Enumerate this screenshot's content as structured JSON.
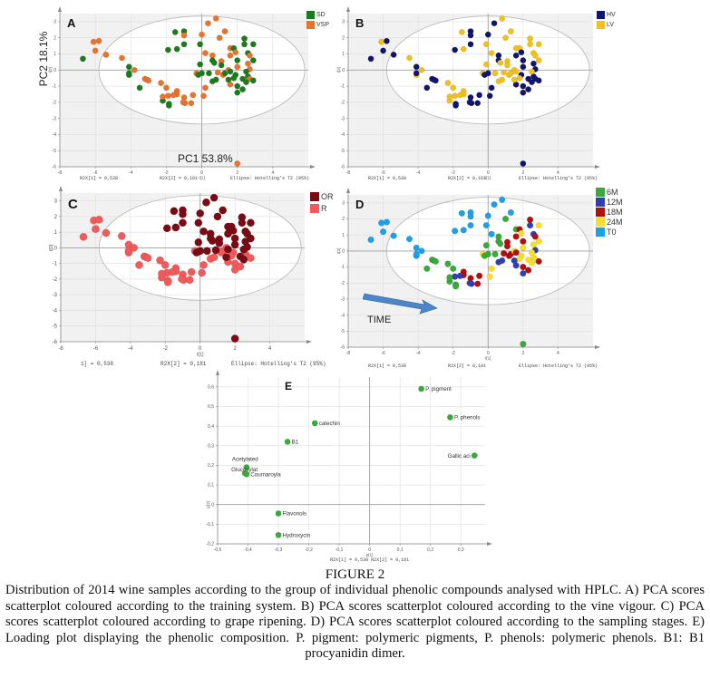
{
  "figure": {
    "title": "FIGURE 2",
    "caption": "Distribution of 2014 wine samples according to the group of individual phenolic compounds analysed with HPLC. A) PCA scores scatterplot coloured according to the training system. B) PCA scores scatterplot coloured according to the vine vigour. C) PCA scores scatterplot coloured according to grape ripening. D) PCA scores scatterplot coloured according to the sampling stages. E) Loading plot displaying the phenolic composition. P. pigment: polymeric pigments, P. phenols: polymeric phenols. B1: B1 procyanidin dimer."
  },
  "annotations": {
    "pc2_label": "PC2 18.1%",
    "pc1_label": "PC1 53.8%",
    "time_label": "TIME"
  },
  "chart_data": [
    {
      "id": "A",
      "type": "scatter",
      "title": "A",
      "xlabel": "t[1]",
      "ylabel": "t[2]",
      "xlim": [
        -8,
        6
      ],
      "ylim": [
        -6,
        3.5
      ],
      "xticks": [
        -8,
        -6,
        -4,
        -2,
        0,
        2,
        4
      ],
      "yticks": [
        3,
        2,
        1,
        0,
        -1,
        -2,
        -3,
        -4,
        -5,
        -6
      ],
      "grid": true,
      "legend_position": "top-right",
      "footer": [
        "R2X[1] = 0,538",
        "R2X[2] = 0,181",
        "Ellipse: Hotelling's T2 (95%)"
      ],
      "ellipse": {
        "rx": 5.8,
        "ry": 3.35
      },
      "groups": [
        {
          "name": "SD",
          "color": "#1e7a1e"
        },
        {
          "name": "VSP",
          "color": "#e8732a"
        }
      ],
      "group_key": "a"
    },
    {
      "id": "B",
      "type": "scatter",
      "title": "B",
      "xlabel": "t[1]",
      "ylabel": "t[2]",
      "xlim": [
        -8,
        6
      ],
      "ylim": [
        -6,
        3.5
      ],
      "xticks": [
        -8,
        -6,
        -4,
        -2,
        0,
        2,
        4
      ],
      "yticks": [
        3,
        2,
        1,
        0,
        -1,
        -2,
        -3,
        -4,
        -5,
        -6
      ],
      "grid": true,
      "legend_position": "top-right",
      "footer": [
        "R2X[1] = 0,538",
        "R2X[2] = 0,181",
        "Ellipse: Hotelling's T2 (95%)"
      ],
      "ellipse": {
        "rx": 5.8,
        "ry": 3.35
      },
      "groups": [
        {
          "name": "HV",
          "color": "#12166b"
        },
        {
          "name": "LV",
          "color": "#f0c020"
        }
      ],
      "group_key": "b"
    },
    {
      "id": "C",
      "type": "scatter",
      "title": "C",
      "xlabel": "t[1]",
      "ylabel": "t[2]",
      "xlim": [
        -8,
        6
      ],
      "ylim": [
        -6,
        3.5
      ],
      "xticks": [
        -8,
        -6,
        -4,
        -2,
        0,
        2,
        4
      ],
      "yticks": [
        3,
        2,
        1,
        0,
        -1,
        -2,
        -3,
        -4,
        -5,
        -6
      ],
      "grid": true,
      "legend_position": "top-right",
      "footer": [
        "1] = 0,538",
        "R2X[2] = 0,181",
        "Ellipse: Hotelling's T2 (95%)"
      ],
      "ellipse": {
        "rx": 5.8,
        "ry": 3.35
      },
      "groups": [
        {
          "name": "OR",
          "color": "#7a0b14"
        },
        {
          "name": "R",
          "color": "#f05a5a"
        }
      ],
      "group_key": "c"
    },
    {
      "id": "D",
      "type": "scatter",
      "title": "D",
      "xlabel": "t[1]",
      "ylabel": "t[2]",
      "xlim": [
        -8,
        6
      ],
      "ylim": [
        -6,
        3.5
      ],
      "xticks": [
        -8,
        -6,
        -4,
        -2,
        0,
        2,
        4
      ],
      "yticks": [
        3,
        2,
        1,
        0,
        -1,
        -2,
        -3,
        -4,
        -5,
        -6
      ],
      "grid": true,
      "legend_position": "top-right",
      "footer": [
        "R2X[1] = 0,538",
        "R2X[2] = 0,181",
        "Ellipse: Hotelling's T2 (95%)"
      ],
      "ellipse": {
        "rx": 5.8,
        "ry": 3.35
      },
      "groups": [
        {
          "name": "6M",
          "color": "#3aa83a"
        },
        {
          "name": "12M",
          "color": "#3040b0"
        },
        {
          "name": "18M",
          "color": "#b01010"
        },
        {
          "name": "24M",
          "color": "#f5e030"
        },
        {
          "name": "T0",
          "color": "#1ea0e6"
        }
      ],
      "group_key": "d"
    },
    {
      "id": "E",
      "type": "scatter",
      "title": "E",
      "xlabel": "p[1]",
      "ylabel": "p[2]",
      "xlim": [
        -0.5,
        0.38
      ],
      "ylim": [
        -0.2,
        0.65
      ],
      "xticks": [
        -0.5,
        -0.4,
        -0.3,
        -0.2,
        -0.1,
        0,
        0.1,
        0.2,
        0.3
      ],
      "yticks": [
        0.6,
        0.5,
        0.4,
        0.3,
        0.2,
        0.1,
        0,
        -0.1,
        -0.2
      ],
      "grid": true,
      "footer": [
        "R2X[1] = 0,538 R2X[2] = 0,181"
      ],
      "color": "#3aa83a",
      "points": [
        {
          "label": "P. pigment",
          "x": 0.17,
          "y": 0.59,
          "anchor": "right"
        },
        {
          "label": "P. phenols",
          "x": 0.265,
          "y": 0.445,
          "anchor": "right"
        },
        {
          "label": "Gallic aci",
          "x": 0.345,
          "y": 0.25,
          "anchor": "left"
        },
        {
          "label": "catechin",
          "x": -0.18,
          "y": 0.415,
          "anchor": "right"
        },
        {
          "label": "B1",
          "x": -0.27,
          "y": 0.32,
          "anchor": "right"
        },
        {
          "label": "Acetylated",
          "x": -0.405,
          "y": 0.19,
          "anchor": "above"
        },
        {
          "label": "Glucosylat",
          "x": -0.41,
          "y": 0.16,
          "anchor": "above2"
        },
        {
          "label": "Coumaroyla",
          "x": -0.405,
          "y": 0.155,
          "anchor": "right"
        },
        {
          "label": "Flavonols",
          "x": -0.3,
          "y": -0.045,
          "anchor": "right"
        },
        {
          "label": "Hydroxycin",
          "x": -0.3,
          "y": -0.155,
          "anchor": "right"
        }
      ]
    }
  ],
  "samples": [
    {
      "x": -6.7,
      "y": 0.7,
      "a": "SD",
      "b": "HV",
      "c": "R",
      "d": "T0"
    },
    {
      "x": -6.1,
      "y": 1.75,
      "a": "VSP",
      "b": "LV",
      "c": "R",
      "d": "T0"
    },
    {
      "x": -6.0,
      "y": 1.2,
      "a": "VSP",
      "b": "HV",
      "c": "R",
      "d": "T0"
    },
    {
      "x": -5.8,
      "y": 1.8,
      "a": "VSP",
      "b": "HV",
      "c": "R",
      "d": "T0"
    },
    {
      "x": -5.4,
      "y": 0.95,
      "a": "VSP",
      "b": "HV",
      "c": "R",
      "d": "T0"
    },
    {
      "x": -4.5,
      "y": 0.75,
      "a": "VSP",
      "b": "LV",
      "c": "R",
      "d": "T0"
    },
    {
      "x": -4.1,
      "y": 0.2,
      "a": "SD",
      "b": "HV",
      "c": "R",
      "d": "T0"
    },
    {
      "x": -4.1,
      "y": -0.3,
      "a": "SD",
      "b": "LV",
      "c": "R",
      "d": "T0"
    },
    {
      "x": -4.1,
      "y": -0.2,
      "a": "SD",
      "b": "HV",
      "c": "R",
      "d": "T0"
    },
    {
      "x": -3.8,
      "y": 0.0,
      "a": "VSP",
      "b": "LV",
      "c": "R",
      "d": "T0"
    },
    {
      "x": -3.2,
      "y": -0.55,
      "a": "VSP",
      "b": "HV",
      "c": "R",
      "d": "6M"
    },
    {
      "x": -3.1,
      "y": -0.6,
      "a": "VSP",
      "b": "HV",
      "c": "R",
      "d": "6M"
    },
    {
      "x": -3.0,
      "y": -0.65,
      "a": "VSP",
      "b": "HV",
      "c": "R",
      "d": "6M"
    },
    {
      "x": -3.5,
      "y": -1.1,
      "a": "SD",
      "b": "HV",
      "c": "R",
      "d": "6M"
    },
    {
      "x": -2.3,
      "y": -0.8,
      "a": "VSP",
      "b": "LV",
      "c": "R",
      "d": "6M"
    },
    {
      "x": -2.0,
      "y": -1.1,
      "a": "VSP",
      "b": "LV",
      "c": "R",
      "d": "6M"
    },
    {
      "x": -1.9,
      "y": -1.6,
      "a": "VSP",
      "b": "LV",
      "c": "R",
      "d": "12M"
    },
    {
      "x": -2.2,
      "y": -1.9,
      "a": "SD",
      "b": "LV",
      "c": "R",
      "d": "6M"
    },
    {
      "x": -2.2,
      "y": -1.65,
      "a": "VSP",
      "b": "LV",
      "c": "R",
      "d": "6M"
    },
    {
      "x": -1.85,
      "y": -2.1,
      "a": "SD",
      "b": "HV",
      "c": "R",
      "d": "6M"
    },
    {
      "x": -1.85,
      "y": -2.2,
      "a": "SD",
      "b": "HV",
      "c": "R",
      "d": "6M"
    },
    {
      "x": -1.4,
      "y": -1.3,
      "a": "VSP",
      "b": "LV",
      "c": "R",
      "d": "18M"
    },
    {
      "x": -1.4,
      "y": -1.5,
      "a": "VSP",
      "b": "LV",
      "c": "R",
      "d": "18M"
    },
    {
      "x": -1.6,
      "y": -1.55,
      "a": "VSP",
      "b": "LV",
      "c": "R",
      "d": "12M"
    },
    {
      "x": -1.0,
      "y": -1.7,
      "a": "VSP",
      "b": "HV",
      "c": "R",
      "d": "18M"
    },
    {
      "x": -0.95,
      "y": -2.05,
      "a": "VSP",
      "b": "HV",
      "c": "R",
      "d": "12M"
    },
    {
      "x": -1.05,
      "y": -2.0,
      "a": "VSP",
      "b": "HV",
      "c": "R",
      "d": "12M"
    },
    {
      "x": -0.6,
      "y": -2.05,
      "a": "VSP",
      "b": "HV",
      "c": "R",
      "d": "18M"
    },
    {
      "x": -0.5,
      "y": -1.55,
      "a": "VSP",
      "b": "HV",
      "c": "R",
      "d": "18M"
    },
    {
      "x": -0.3,
      "y": -0.2,
      "a": "VSP",
      "b": "LV",
      "c": "R",
      "d": "24M"
    },
    {
      "x": 0.1,
      "y": -1.6,
      "a": "VSP",
      "b": "HV",
      "c": "R",
      "d": "24M"
    },
    {
      "x": 0.2,
      "y": -1.1,
      "a": "VSP",
      "b": "HV",
      "c": "R",
      "d": "24M"
    },
    {
      "x": 0.6,
      "y": -0.7,
      "a": "SD",
      "b": "LV",
      "c": "R",
      "d": "12M"
    },
    {
      "x": 0.8,
      "y": -0.6,
      "a": "SD",
      "b": "LV",
      "c": "R",
      "d": "12M"
    },
    {
      "x": 1.2,
      "y": -0.3,
      "a": "VSP",
      "b": "LV",
      "c": "R",
      "d": "18M"
    },
    {
      "x": 1.3,
      "y": -0.2,
      "a": "SD",
      "b": "LV",
      "c": "R",
      "d": "18M"
    },
    {
      "x": 1.6,
      "y": -0.9,
      "a": "VSP",
      "b": "HV",
      "c": "R",
      "d": "12M"
    },
    {
      "x": 1.9,
      "y": -0.3,
      "a": "SD",
      "b": "HV",
      "c": "R",
      "d": "24M"
    },
    {
      "x": 2.0,
      "y": -1.4,
      "a": "SD",
      "b": "HV",
      "c": "R",
      "d": "12M"
    },
    {
      "x": 2.0,
      "y": -1.0,
      "a": "SD",
      "b": "HV",
      "c": "R",
      "d": "18M"
    },
    {
      "x": 2.3,
      "y": -1.2,
      "a": "SD",
      "b": "HV",
      "c": "R",
      "d": "18M"
    },
    {
      "x": 2.6,
      "y": -0.4,
      "a": "SD",
      "b": "HV",
      "c": "R",
      "d": "24M"
    },
    {
      "x": 2.7,
      "y": -0.55,
      "a": "VSP",
      "b": "HV",
      "c": "R",
      "d": "24M"
    },
    {
      "x": 2.9,
      "y": -0.65,
      "a": "SD",
      "b": "HV",
      "c": "R",
      "d": "18M"
    },
    {
      "x": 1.5,
      "y": 0.0,
      "a": "VSP",
      "b": "LV",
      "c": "R",
      "d": "24M"
    },
    {
      "x": 1.8,
      "y": -0.5,
      "a": "SD",
      "b": "LV",
      "c": "R",
      "d": "24M"
    },
    {
      "x": -1.9,
      "y": 1.25,
      "a": "SD",
      "b": "HV",
      "c": "OR",
      "d": "T0"
    },
    {
      "x": -1.5,
      "y": 2.35,
      "a": "SD",
      "b": "LV",
      "c": "OR",
      "d": "T0"
    },
    {
      "x": -1.4,
      "y": 1.3,
      "a": "SD",
      "b": "LV",
      "c": "OR",
      "d": "T0"
    },
    {
      "x": -1.0,
      "y": 2.4,
      "a": "SD",
      "b": "HV",
      "c": "OR",
      "d": "T0"
    },
    {
      "x": -1.0,
      "y": 2.15,
      "a": "VSP",
      "b": "HV",
      "c": "OR",
      "d": "T0"
    },
    {
      "x": -1.0,
      "y": 1.6,
      "a": "SD",
      "b": "HV",
      "c": "OR",
      "d": "T0"
    },
    {
      "x": -0.1,
      "y": 1.6,
      "a": "SD",
      "b": "LV",
      "c": "OR",
      "d": "T0"
    },
    {
      "x": 0.0,
      "y": 2.2,
      "a": "VSP",
      "b": "HV",
      "c": "OR",
      "d": "T0"
    },
    {
      "x": 0.35,
      "y": 2.9,
      "a": "VSP",
      "b": "HV",
      "c": "OR",
      "d": "T0"
    },
    {
      "x": 0.8,
      "y": 3.2,
      "a": "VSP",
      "b": "LV",
      "c": "OR",
      "d": "T0"
    },
    {
      "x": 1.0,
      "y": 2.0,
      "a": "VSP",
      "b": "LV",
      "c": "OR",
      "d": "6M"
    },
    {
      "x": 1.3,
      "y": 2.4,
      "a": "VSP",
      "b": "LV",
      "c": "OR",
      "d": "T0"
    },
    {
      "x": -0.1,
      "y": 0.35,
      "a": "SD",
      "b": "LV",
      "c": "OR",
      "d": "6M"
    },
    {
      "x": 0.2,
      "y": 1.05,
      "a": "VSP",
      "b": "LV",
      "c": "OR",
      "d": "T0"
    },
    {
      "x": 0.6,
      "y": 0.9,
      "a": "VSP",
      "b": "HV",
      "c": "OR",
      "d": "6M"
    },
    {
      "x": 0.6,
      "y": 0.6,
      "a": "SD",
      "b": "HV",
      "c": "OR",
      "d": "6M"
    },
    {
      "x": 0.7,
      "y": 0.45,
      "a": "SD",
      "b": "LV",
      "c": "OR",
      "d": "6M"
    },
    {
      "x": 1.1,
      "y": 0.55,
      "a": "VSP",
      "b": "LV",
      "c": "OR",
      "d": "18M"
    },
    {
      "x": 1.1,
      "y": 0.3,
      "a": "SD",
      "b": "LV",
      "c": "OR",
      "d": "18M"
    },
    {
      "x": 1.6,
      "y": 1.35,
      "a": "VSP",
      "b": "LV",
      "c": "OR",
      "d": "6M"
    },
    {
      "x": 1.8,
      "y": 1.35,
      "a": "SD",
      "b": "LV",
      "c": "OR",
      "d": "18M"
    },
    {
      "x": 1.6,
      "y": 0.9,
      "a": "VSP",
      "b": "HV",
      "c": "OR",
      "d": "18M"
    },
    {
      "x": 1.9,
      "y": 1.1,
      "a": "VSP",
      "b": "HV",
      "c": "OR",
      "d": "24M"
    },
    {
      "x": 2.0,
      "y": 0.6,
      "a": "SD",
      "b": "HV",
      "c": "OR",
      "d": "18M"
    },
    {
      "x": 2.4,
      "y": 1.95,
      "a": "SD",
      "b": "LV",
      "c": "OR",
      "d": "18M"
    },
    {
      "x": 2.4,
      "y": 1.6,
      "a": "SD",
      "b": "LV",
      "c": "OR",
      "d": "12M"
    },
    {
      "x": 2.6,
      "y": 1.05,
      "a": "SD",
      "b": "LV",
      "c": "OR",
      "d": "12M"
    },
    {
      "x": 2.7,
      "y": 0.9,
      "a": "VSP",
      "b": "LV",
      "c": "OR",
      "d": "18M"
    },
    {
      "x": 2.9,
      "y": 1.6,
      "a": "SD",
      "b": "LV",
      "c": "OR",
      "d": "24M"
    },
    {
      "x": 2.9,
      "y": 0.6,
      "a": "SD",
      "b": "LV",
      "c": "OR",
      "d": "24M"
    },
    {
      "x": 2.6,
      "y": 0.4,
      "a": "VSP",
      "b": "HV",
      "c": "OR",
      "d": "24M"
    },
    {
      "x": 2.0,
      "y": 0.2,
      "a": "VSP",
      "b": "HV",
      "c": "OR",
      "d": "24M"
    },
    {
      "x": 2.7,
      "y": 0.05,
      "a": "VSP",
      "b": "HV",
      "c": "OR",
      "d": "12M"
    },
    {
      "x": 2.5,
      "y": -0.1,
      "a": "SD",
      "b": "LV",
      "c": "OR",
      "d": "24M"
    },
    {
      "x": 2.3,
      "y": -0.55,
      "a": "SD",
      "b": "HV",
      "c": "OR",
      "d": "24M"
    },
    {
      "x": 2.5,
      "y": -0.75,
      "a": "SD",
      "b": "HV",
      "c": "OR",
      "d": "24M"
    },
    {
      "x": 1.5,
      "y": -0.6,
      "a": "SD",
      "b": "LV",
      "c": "OR",
      "d": "12M"
    },
    {
      "x": 1.6,
      "y": -0.1,
      "a": "SD",
      "b": "LV",
      "c": "OR",
      "d": "18M"
    },
    {
      "x": -0.2,
      "y": -0.3,
      "a": "SD",
      "b": "HV",
      "c": "OR",
      "d": "6M"
    },
    {
      "x": 0.0,
      "y": -0.2,
      "a": "SD",
      "b": "HV",
      "c": "OR",
      "d": "6M"
    },
    {
      "x": 0.4,
      "y": -0.2,
      "a": "SD",
      "b": "LV",
      "c": "OR",
      "d": "6M"
    },
    {
      "x": 0.9,
      "y": -0.15,
      "a": "VSP",
      "b": "LV",
      "c": "OR",
      "d": "18M"
    },
    {
      "x": 2.0,
      "y": -5.8,
      "a": "VSP",
      "b": "HV",
      "c": "OR",
      "d": "6M"
    }
  ]
}
